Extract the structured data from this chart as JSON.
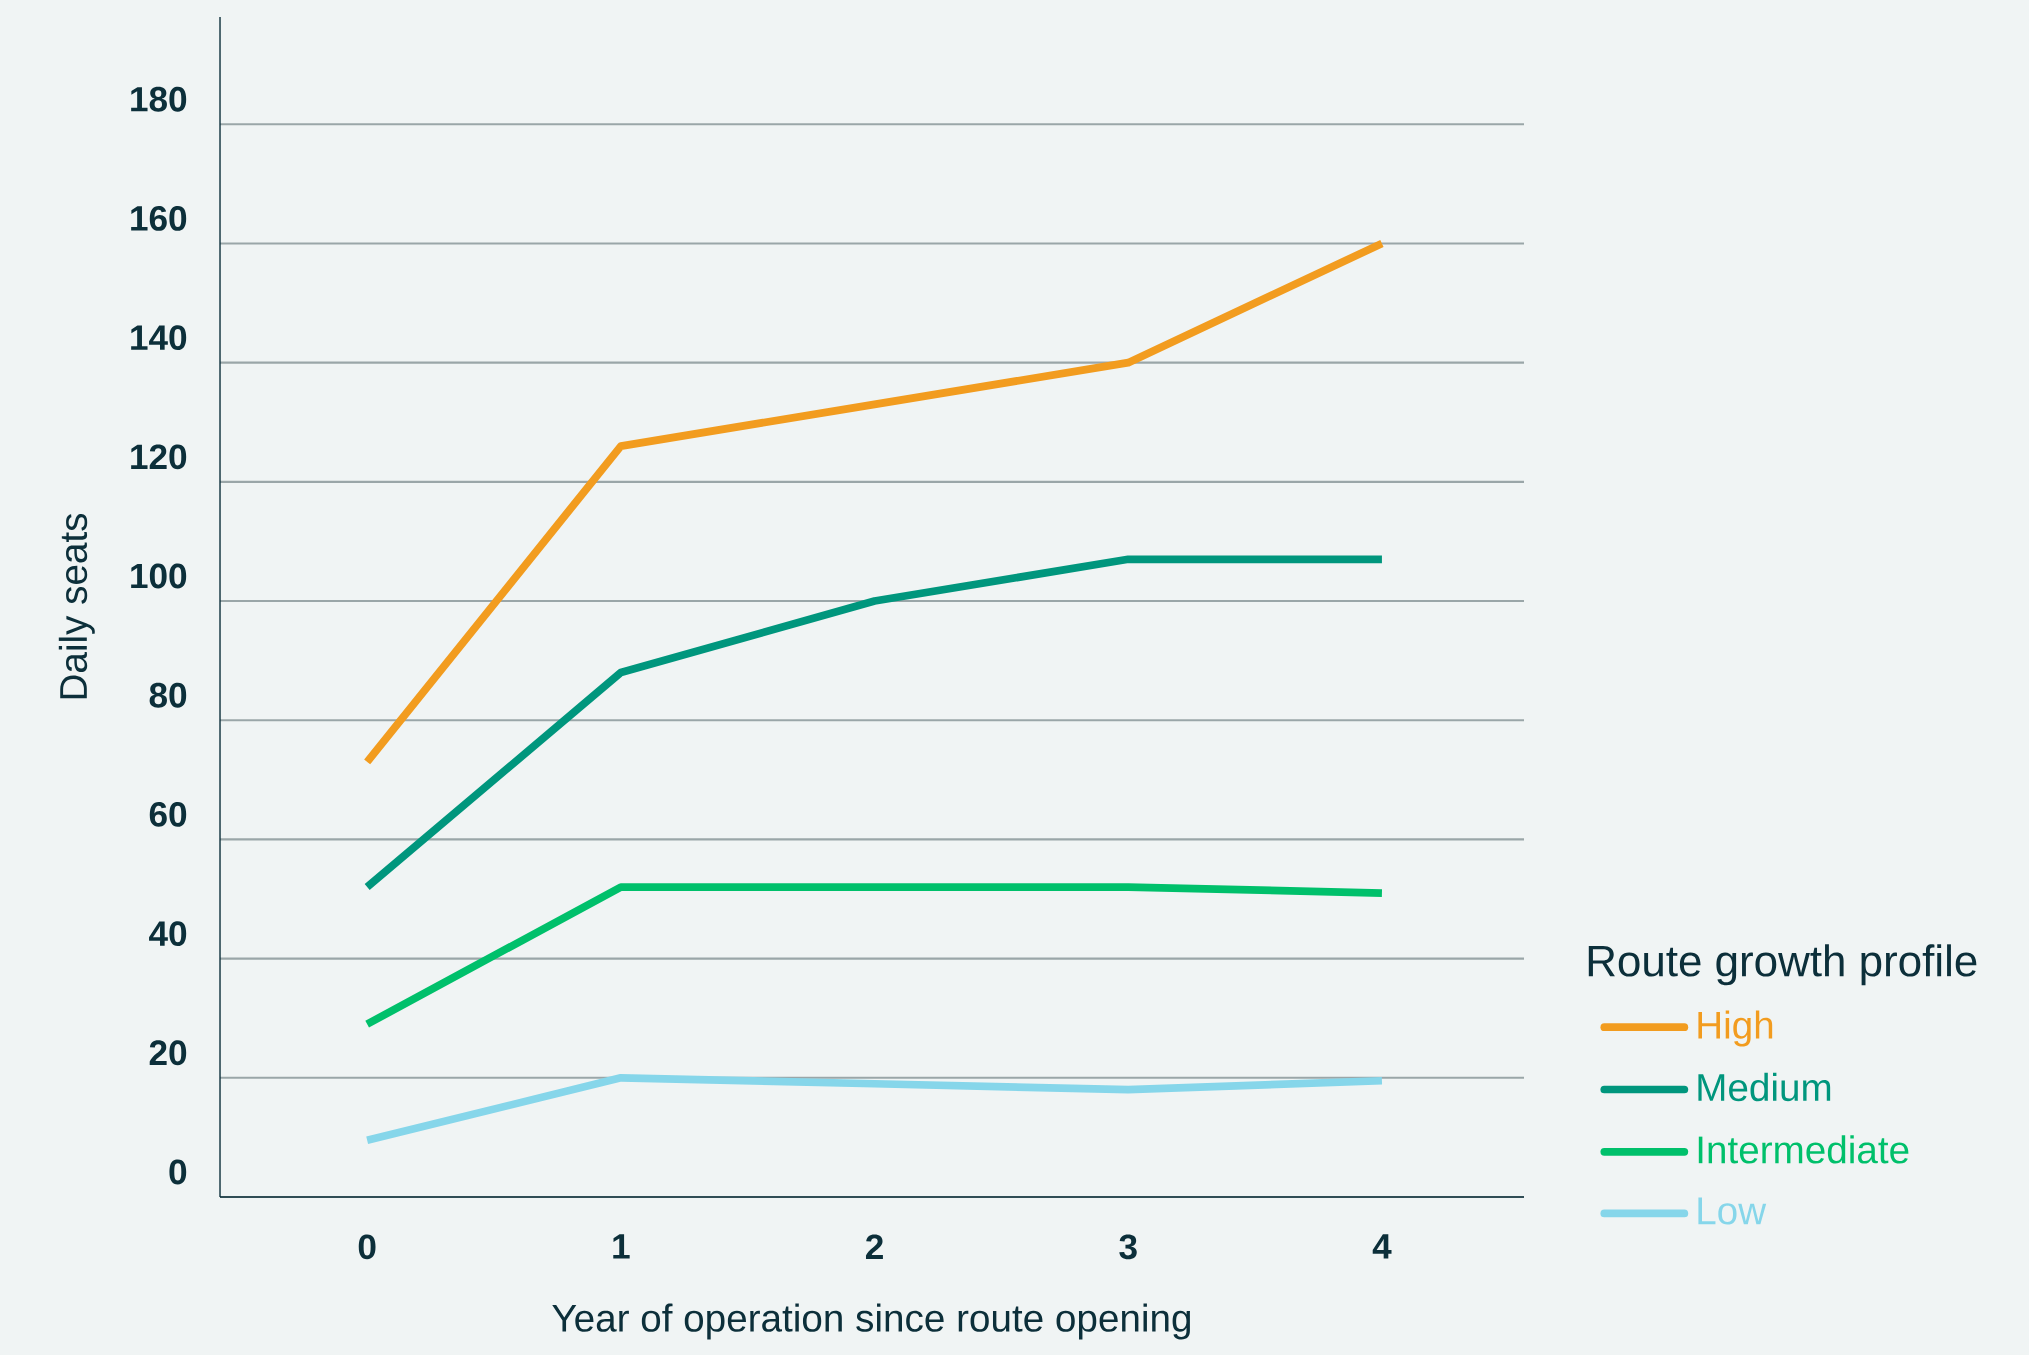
{
  "chart_data": {
    "type": "line",
    "xlabel": "Year of operation since route opening",
    "ylabel": "Daily seats",
    "legend_title": "Route growth profile",
    "x": [
      0,
      1,
      2,
      3,
      4
    ],
    "xlim": [
      -0.58,
      4.56
    ],
    "xticks": [
      0,
      1,
      2,
      3,
      4
    ],
    "ylim": [
      0,
      198
    ],
    "yticks": [
      0,
      20,
      40,
      60,
      80,
      100,
      120,
      140,
      160,
      180
    ],
    "grid": "y",
    "legend": "right",
    "series": [
      {
        "name": "High",
        "color": "#f29c1f",
        "values": [
          73,
          126,
          133,
          140,
          160
        ]
      },
      {
        "name": "Medium",
        "color": "#00967d",
        "values": [
          52,
          88,
          100,
          107,
          107
        ]
      },
      {
        "name": "Intermediate",
        "color": "#00c06b",
        "values": [
          29,
          52,
          52,
          52,
          51
        ]
      },
      {
        "name": "Low",
        "color": "#86d6ea",
        "values": [
          9.5,
          20,
          19,
          18,
          19.5
        ]
      }
    ]
  }
}
